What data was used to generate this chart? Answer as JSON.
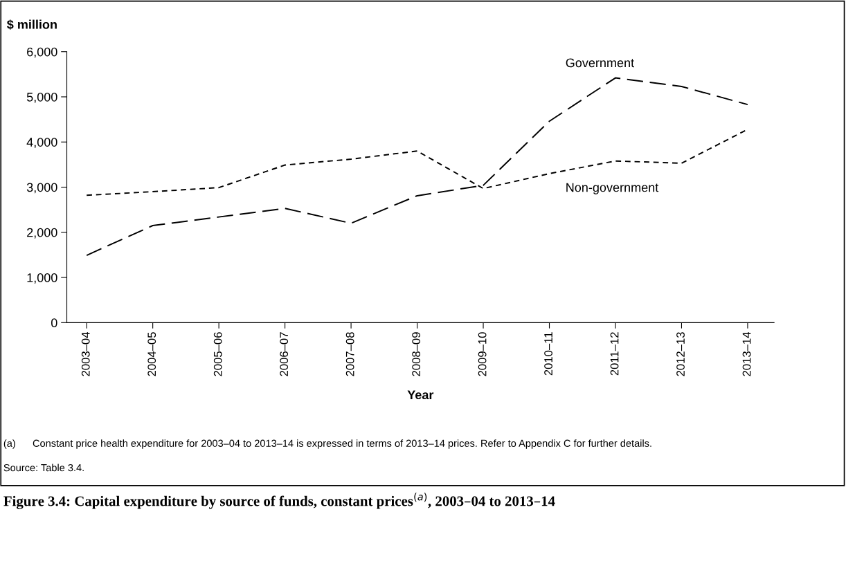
{
  "chart_data": {
    "type": "line",
    "title": "Figure 3.4: Capital expenditure by source of funds, constant prices$^{(a)}$, 2003–04 to 2013–14",
    "xlabel": "Year",
    "ylabel": "$ million",
    "categories": [
      "2003–04",
      "2004–05",
      "2005–06",
      "2006–07",
      "2007–08",
      "2008–09",
      "2009–10",
      "2010–11",
      "2011–12",
      "2012–13",
      "2013–14"
    ],
    "series": [
      {
        "name": "Government",
        "color": "#000000",
        "line_style": "dashed",
        "values": [
          1490,
          2150,
          2340,
          2530,
          2200,
          2810,
          3040,
          4460,
          5420,
          5230,
          4830
        ]
      },
      {
        "name": "Non-government",
        "color": "#000000",
        "line_style": "dotted",
        "values": [
          2820,
          2900,
          2990,
          3490,
          3620,
          3800,
          2970,
          3300,
          3580,
          3530,
          4280
        ]
      }
    ],
    "ylim": [
      0,
      6000
    ],
    "yticks": [
      {
        "value": 0,
        "label": "0"
      },
      {
        "value": 1000,
        "label": "1,000"
      },
      {
        "value": 2000,
        "label": "2,000"
      },
      {
        "value": 3000,
        "label": "3,000"
      },
      {
        "value": 4000,
        "label": "4,000"
      },
      {
        "value": 5000,
        "label": "5,000"
      },
      {
        "value": 6000,
        "label": "6,000"
      }
    ],
    "grid": false,
    "legend": false,
    "marker": "none",
    "annotations": [
      "(a)      Constant price health expenditure for 2003–04 to 2013–14 is expressed in terms of 2013–14 prices. Refer to Appendix C for further details.",
      "Source: Table 3.4."
    ]
  }
}
